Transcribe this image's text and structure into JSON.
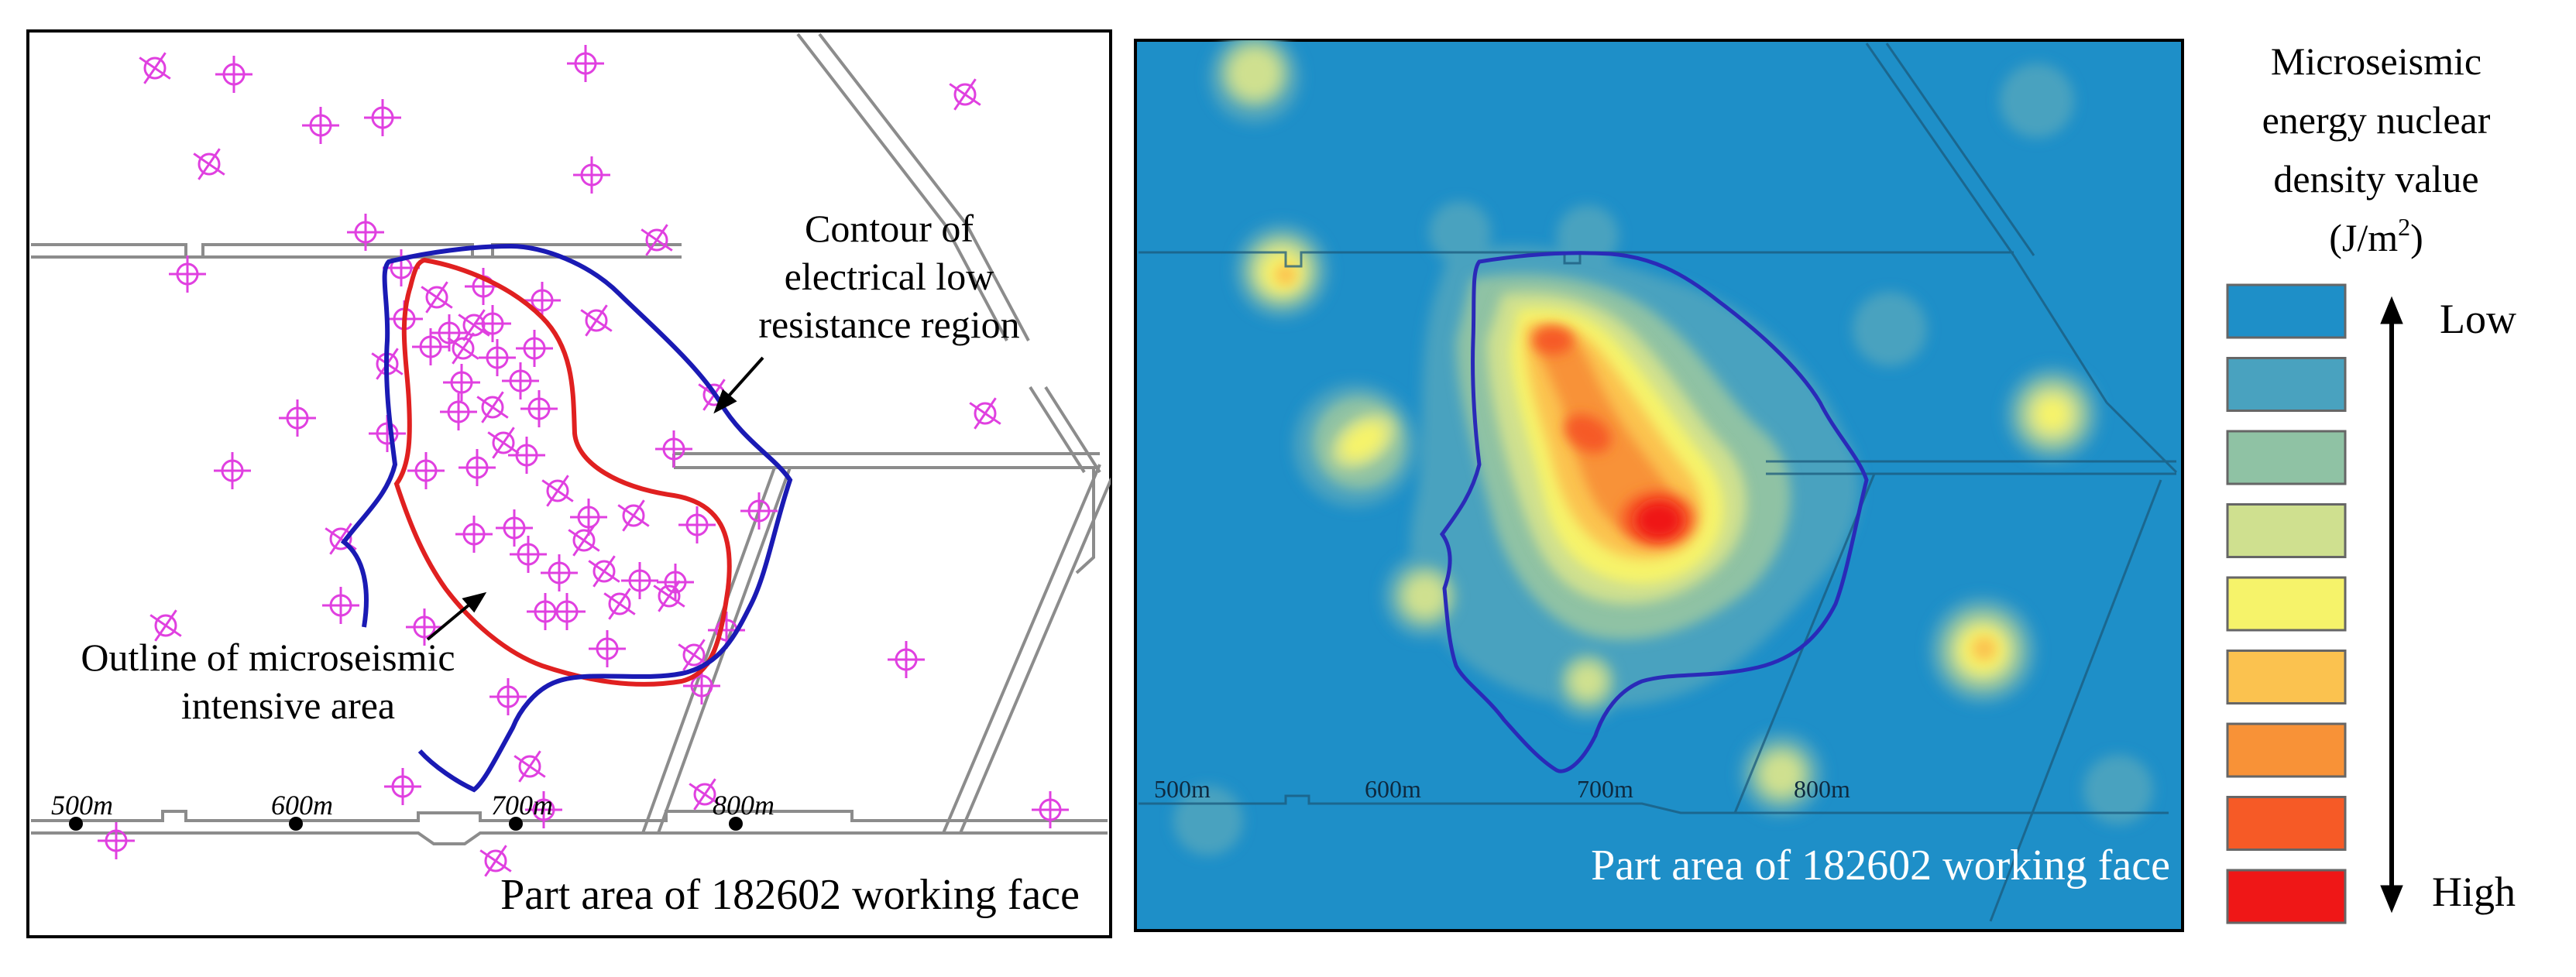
{
  "left_panel": {
    "annotations": {
      "contour_line1": "Contour of",
      "contour_line2": "electrical low",
      "contour_line3": "resistance region",
      "outline_line1": "Outline of microseismic",
      "outline_line2": "intensive area"
    },
    "scale_labels": [
      "500m",
      "600m",
      "700m",
      "800m"
    ],
    "caption": "Part area of 182602 working face",
    "colors": {
      "event": "#e040e0",
      "contour": "#1a1ab4",
      "outline": "#e02020",
      "roadway": "#8c8c8c"
    }
  },
  "right_panel": {
    "scale_labels": [
      "500m",
      "600m",
      "700m",
      "800m"
    ],
    "caption": "Part area of 182602 working face",
    "background_color": "#1e8fc8"
  },
  "legend": {
    "title_line1": "Microseismic",
    "title_line2": "energy nuclear",
    "title_line3": "density value",
    "unit_base": "(J/m",
    "unit_sup": "2",
    "unit_close": ")",
    "low_label": "Low",
    "high_label": "High",
    "color_scale": [
      "#1e8fc8",
      "#49a2bf",
      "#8fc2a4",
      "#cfe08f",
      "#f6f36a",
      "#fbc24f",
      "#f89237",
      "#f65a26",
      "#ef1717"
    ]
  }
}
